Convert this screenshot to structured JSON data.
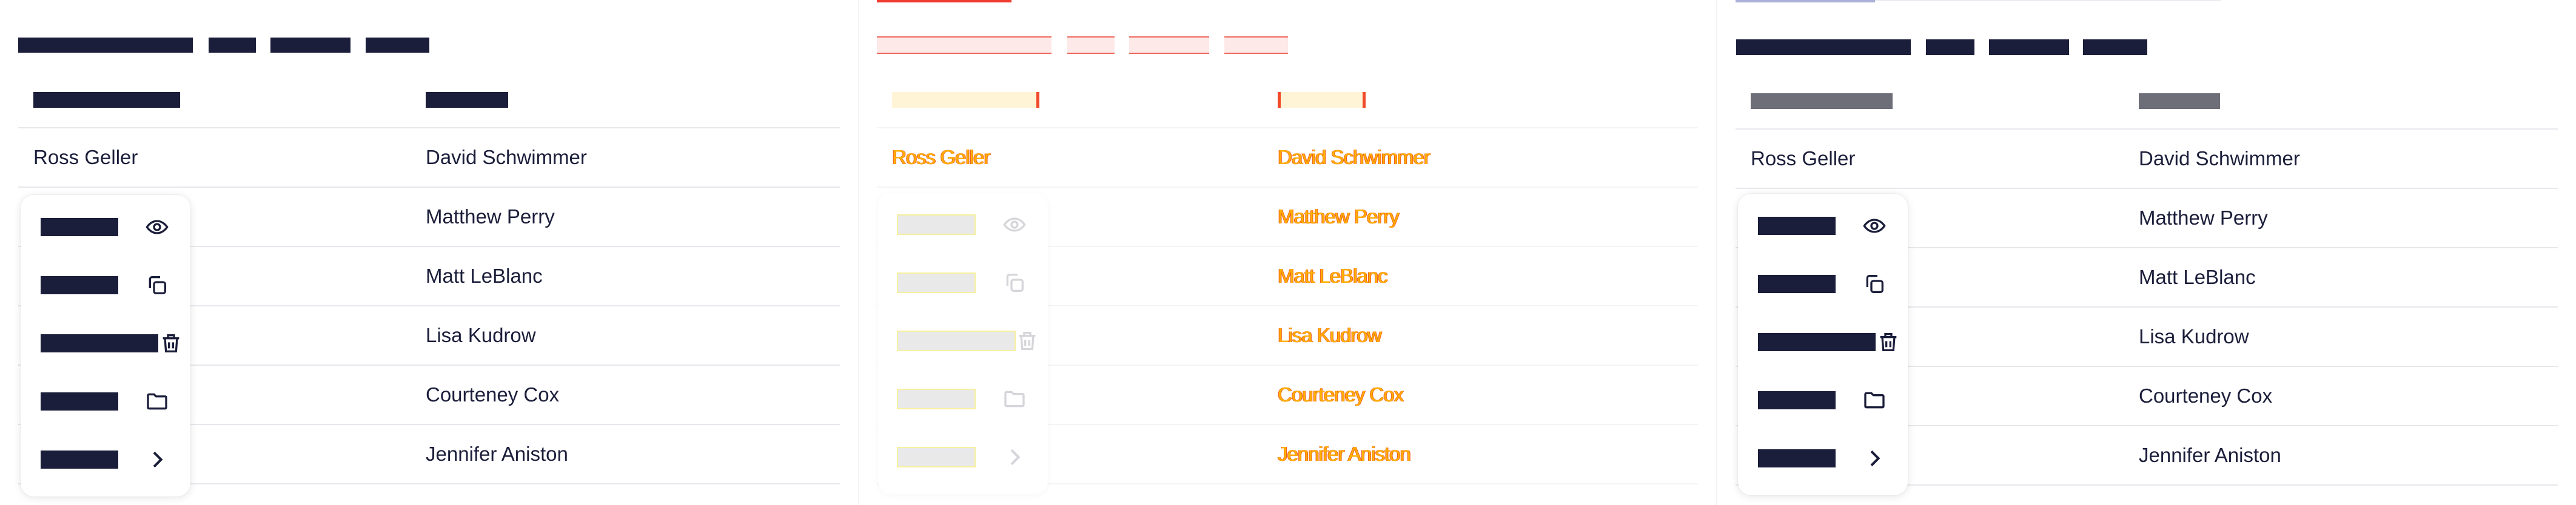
{
  "table": {
    "rows": [
      {
        "character": "Ross Geller",
        "actor": "David Schwimmer"
      },
      {
        "character": "",
        "actor": "Matthew Perry"
      },
      {
        "character": "",
        "actor": "Matt LeBlanc"
      },
      {
        "character": "",
        "actor": "Lisa Kudrow"
      },
      {
        "character": "",
        "actor": "Courteney Cox"
      },
      {
        "character": "",
        "actor": "Jennifer Aniston"
      }
    ]
  },
  "menu": {
    "items": [
      {
        "icon": "eye-icon"
      },
      {
        "icon": "copy-icon"
      },
      {
        "icon": "trash-icon"
      },
      {
        "icon": "folder-icon"
      },
      {
        "icon": "chevron-right-icon"
      }
    ]
  }
}
